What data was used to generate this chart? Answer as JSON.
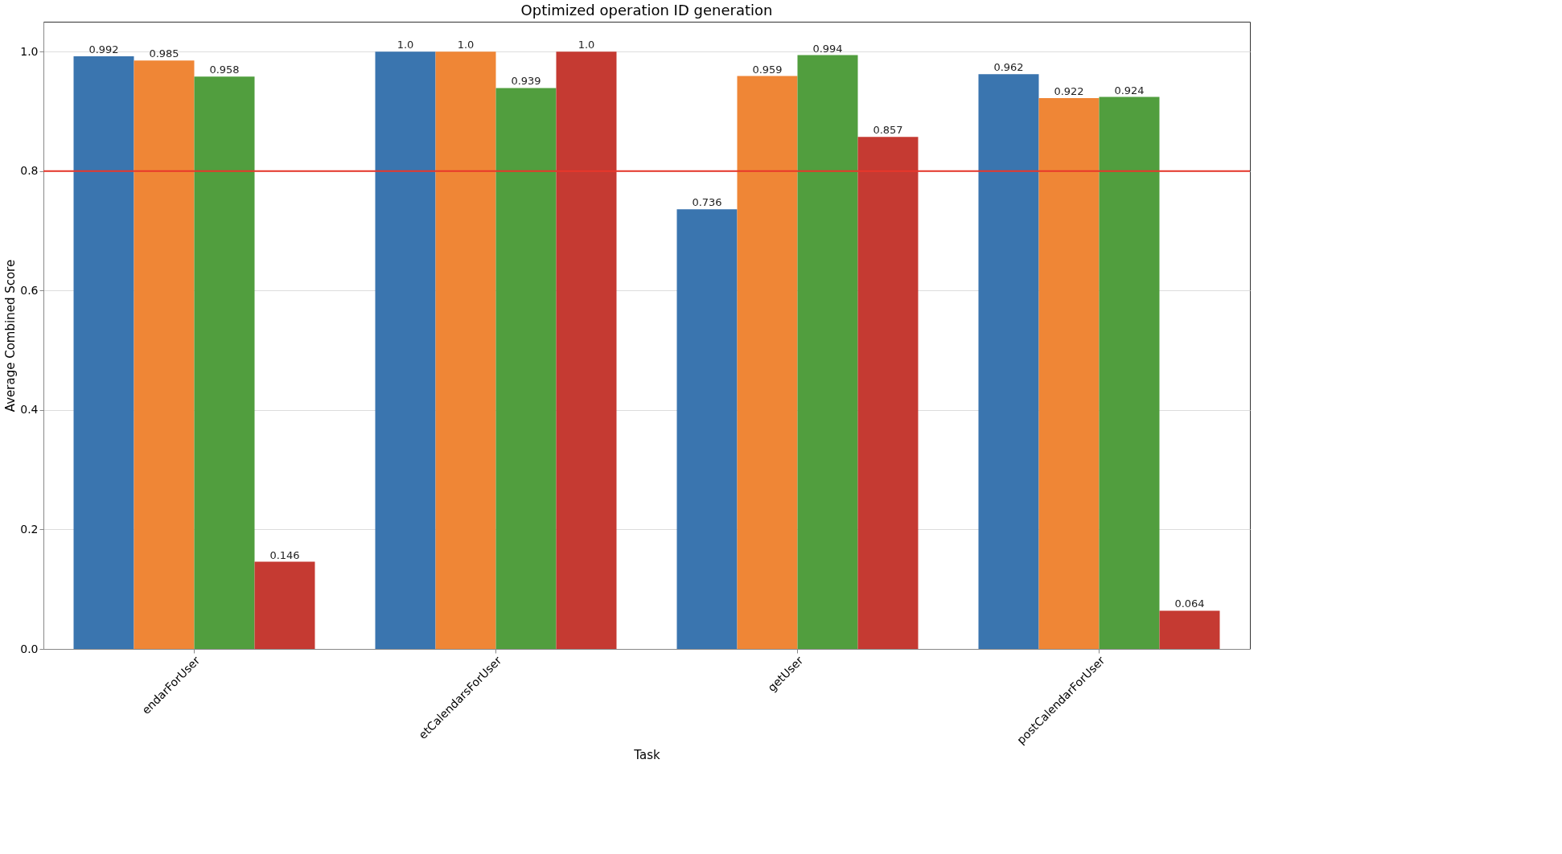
{
  "chart_data": {
    "type": "bar",
    "title": "Optimized operation ID generation",
    "xlabel": "Task",
    "ylabel": "Average Combined Score",
    "categories": [
      "endarForUser",
      "etCalendarsForUser",
      "getUser",
      "postCalendarForUser"
    ],
    "series": [
      {
        "color": "#3a75af",
        "values": [
          0.992,
          1.0,
          0.736,
          0.962
        ],
        "value_labels": [
          "0.992",
          "1.0",
          "0.736",
          "0.962"
        ]
      },
      {
        "color": "#ef8636",
        "values": [
          0.985,
          1.0,
          0.959,
          0.922
        ],
        "value_labels": [
          "0.985",
          "1.0",
          "0.959",
          "0.922"
        ]
      },
      {
        "color": "#519e3e",
        "values": [
          0.958,
          0.939,
          0.994,
          0.924
        ],
        "value_labels": [
          "0.958",
          "0.939",
          "0.994",
          "0.924"
        ]
      },
      {
        "color": "#c53a32",
        "values": [
          0.146,
          1.0,
          0.857,
          0.064
        ],
        "value_labels": [
          "0.146",
          "1.0",
          "0.857",
          "0.064"
        ]
      }
    ],
    "ylim": [
      0,
      1.05
    ],
    "yticks": [
      {
        "value": 0,
        "label": "0.0"
      },
      0.2,
      0.4,
      0.6,
      0.8,
      {
        "value": 1,
        "label": "1.0"
      }
    ],
    "grid": "y",
    "legend": false,
    "ref_lines": [
      {
        "axis": "y",
        "value": 0.8,
        "color": "#e8372b"
      }
    ]
  }
}
